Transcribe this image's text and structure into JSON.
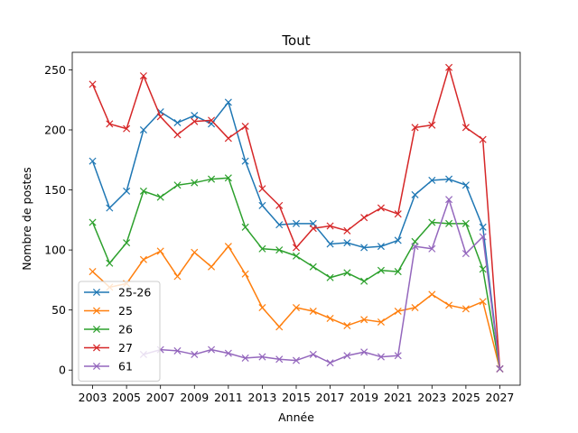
{
  "chart_data": {
    "type": "line",
    "title": "Tout",
    "xlabel": "Année",
    "ylabel": "Nombre de postes",
    "xlim": [
      2001.8,
      2028.2
    ],
    "ylim": [
      -12.6,
      264.6
    ],
    "x_ticks": [
      2003,
      2005,
      2007,
      2009,
      2011,
      2013,
      2015,
      2017,
      2019,
      2021,
      2023,
      2025,
      2027
    ],
    "y_ticks": [
      0,
      50,
      100,
      150,
      200,
      250
    ],
    "grid": false,
    "legend_position": "lower-left",
    "marker": "x",
    "x": [
      2003,
      2004,
      2005,
      2006,
      2007,
      2008,
      2009,
      2010,
      2011,
      2012,
      2013,
      2014,
      2015,
      2016,
      2017,
      2018,
      2019,
      2020,
      2021,
      2022,
      2023,
      2024,
      2025,
      2026,
      2027
    ],
    "series": [
      {
        "name": "25-26",
        "color": "#1f77b4",
        "values": [
          174,
          135,
          149,
          200,
          215,
          206,
          212,
          205,
          223,
          174,
          137,
          121,
          122,
          122,
          105,
          106,
          102,
          103,
          108,
          146,
          158,
          159,
          154,
          119,
          1
        ]
      },
      {
        "name": "25",
        "color": "#ff7f0e",
        "values": [
          82,
          69,
          72,
          92,
          99,
          78,
          98,
          86,
          103,
          80,
          52,
          36,
          52,
          49,
          43,
          37,
          42,
          40,
          49,
          52,
          63,
          54,
          51,
          57,
          1
        ]
      },
      {
        "name": "26",
        "color": "#2ca02c",
        "values": [
          123,
          89,
          106,
          149,
          144,
          154,
          156,
          159,
          160,
          119,
          101,
          100,
          95,
          86,
          77,
          81,
          74,
          83,
          82,
          107,
          123,
          122,
          122,
          84,
          1
        ]
      },
      {
        "name": "27",
        "color": "#d62728",
        "values": [
          238,
          205,
          201,
          245,
          211,
          196,
          207,
          208,
          193,
          203,
          151,
          137,
          102,
          118,
          120,
          116,
          127,
          135,
          130,
          202,
          204,
          252,
          202,
          192,
          1
        ]
      },
      {
        "name": "61",
        "color": "#9467bd",
        "values": [
          null,
          null,
          null,
          13,
          17,
          16,
          13,
          17,
          14,
          10,
          11,
          9,
          8,
          13,
          6,
          12,
          15,
          11,
          12,
          103,
          101,
          142,
          97,
          111,
          1
        ]
      }
    ]
  }
}
